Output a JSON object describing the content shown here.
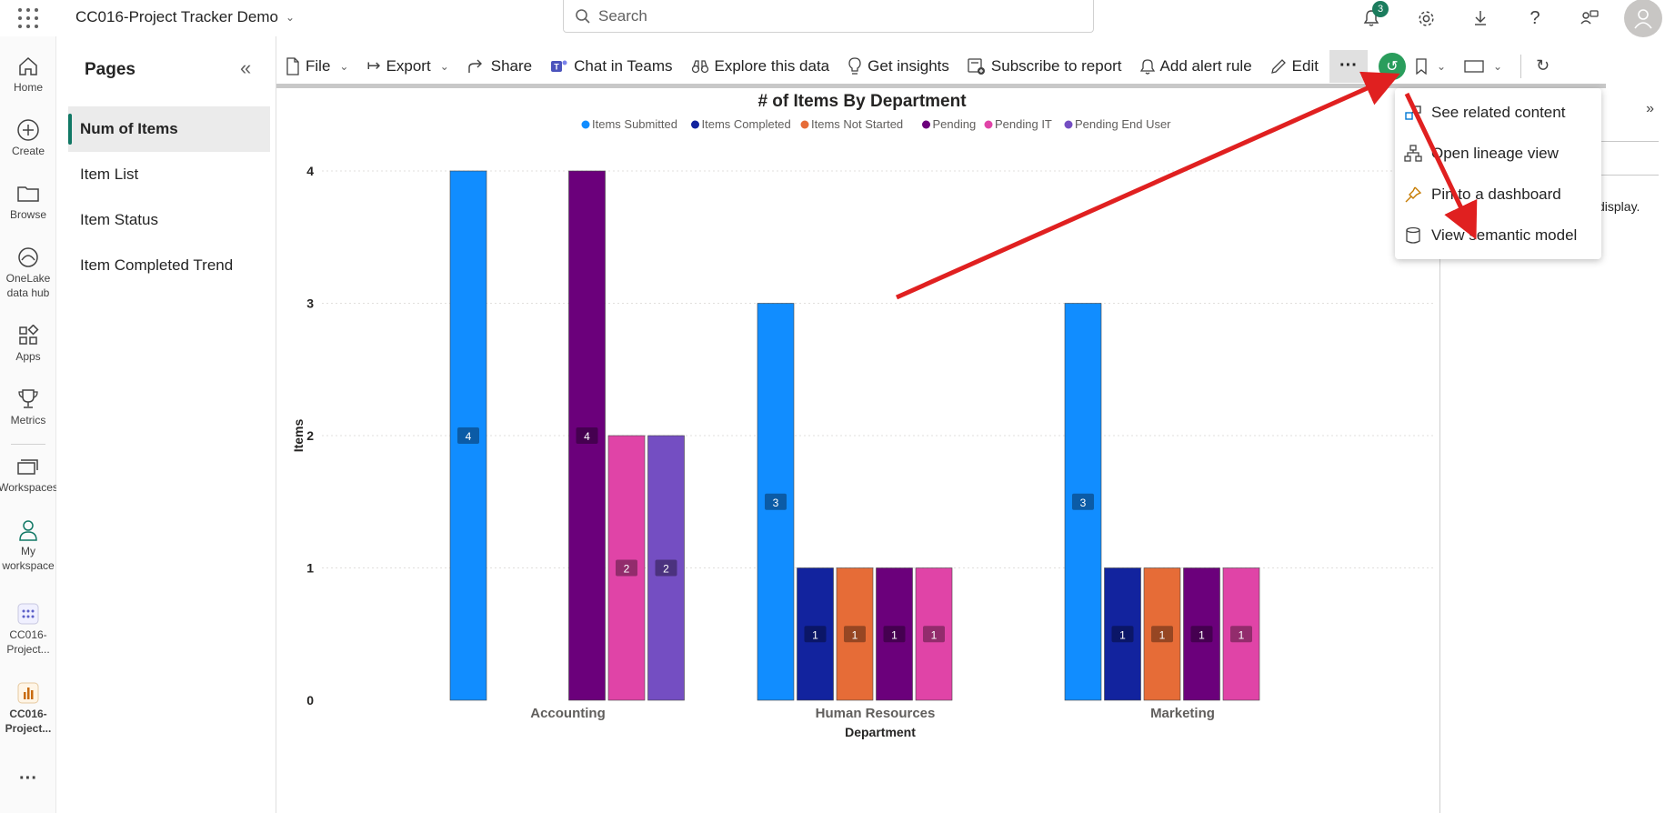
{
  "app": {
    "title": "CC016-Project Tracker Demo",
    "search_placeholder": "Search",
    "notification_count": "3"
  },
  "leftnav": {
    "items": [
      {
        "label": "Home",
        "icon": "home-icon"
      },
      {
        "label": "Create",
        "icon": "plus-circle-icon"
      },
      {
        "label": "Browse",
        "icon": "folder-icon"
      },
      {
        "label": "OneLake data hub",
        "icon": "onelake-icon"
      },
      {
        "label": "Apps",
        "icon": "apps-icon"
      },
      {
        "label": "Metrics",
        "icon": "trophy-icon"
      },
      {
        "label": "Workspaces",
        "icon": "workspaces-icon"
      },
      {
        "label": "My workspace",
        "icon": "person-icon"
      },
      {
        "label": "CC016-Project...",
        "icon": "app-dots-icon"
      },
      {
        "label": "CC016-Project...",
        "icon": "report-icon"
      }
    ],
    "more": "···"
  },
  "pages": {
    "title": "Pages",
    "items": [
      {
        "label": "Num of Items",
        "active": true
      },
      {
        "label": "Item List",
        "active": false
      },
      {
        "label": "Item Status",
        "active": false
      },
      {
        "label": "Item Completed Trend",
        "active": false
      }
    ]
  },
  "toolbar": {
    "file": "File",
    "export": "Export",
    "share": "Share",
    "chat": "Chat in Teams",
    "explore": "Explore this data",
    "insights": "Get insights",
    "subscribe": "Subscribe to report",
    "alert": "Add alert rule",
    "edit": "Edit",
    "more": "···"
  },
  "menu": {
    "items": [
      {
        "label": "See related content",
        "icon": "related-content-icon"
      },
      {
        "label": "Open lineage view",
        "icon": "lineage-icon"
      },
      {
        "label": "Pin to a dashboard",
        "icon": "pin-icon"
      },
      {
        "label": "View semantic model",
        "icon": "database-icon"
      }
    ]
  },
  "rightpane": {
    "text": "display."
  },
  "chart_data": {
    "type": "bar",
    "title": "# of Items By Department",
    "xlabel": "Department",
    "ylabel": "Items",
    "ylim": [
      0,
      4
    ],
    "yticks": [
      0,
      1,
      2,
      3,
      4
    ],
    "grid": true,
    "legend_position": "top",
    "categories": [
      "Accounting",
      "Human Resources",
      "Marketing"
    ],
    "series": [
      {
        "name": "Items Submitted",
        "color": "#118DFF",
        "values": [
          4,
          3,
          3
        ]
      },
      {
        "name": "Items Completed",
        "color": "#12239E",
        "values": [
          null,
          1,
          1
        ]
      },
      {
        "name": "Items Not Started",
        "color": "#E66C37",
        "values": [
          null,
          1,
          1
        ]
      },
      {
        "name": "Pending",
        "color": "#6B007B",
        "values": [
          4,
          1,
          1
        ]
      },
      {
        "name": "Pending IT",
        "color": "#E044A7",
        "values": [
          2,
          1,
          1
        ]
      },
      {
        "name": "Pending End User",
        "color": "#744EC2",
        "values": [
          2,
          null,
          null
        ]
      }
    ]
  }
}
